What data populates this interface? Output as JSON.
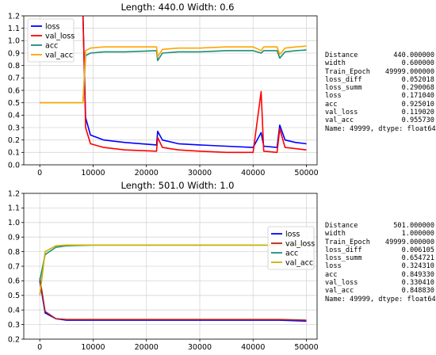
{
  "panels": [
    {
      "title": "Length: 440.0   Width: 0.6",
      "legend_position": "upper-left",
      "stats": [
        {
          "key": "Distance",
          "value": "440.000000"
        },
        {
          "key": "width",
          "value": "0.600000"
        },
        {
          "key": "Train_Epoch",
          "value": "49999.000000"
        },
        {
          "key": "loss_diff",
          "value": "0.052018"
        },
        {
          "key": "loss_summ",
          "value": "0.290068"
        },
        {
          "key": "loss",
          "value": "0.171040"
        },
        {
          "key": "acc",
          "value": "0.925010"
        },
        {
          "key": "val_loss",
          "value": "0.119020"
        },
        {
          "key": "val_acc",
          "value": "0.955730"
        }
      ],
      "stats_footer": "Name: 49999, dtype: float64"
    },
    {
      "title": "Length: 501.0   Width: 1.0",
      "legend_position": "center-right",
      "stats": [
        {
          "key": "Distance",
          "value": "501.000000"
        },
        {
          "key": "width",
          "value": "1.000000"
        },
        {
          "key": "Train_Epoch",
          "value": "49999.000000"
        },
        {
          "key": "loss_diff",
          "value": "0.006105"
        },
        {
          "key": "loss_summ",
          "value": "0.654721"
        },
        {
          "key": "loss",
          "value": "0.324310"
        },
        {
          "key": "acc",
          "value": "0.849330"
        },
        {
          "key": "val_loss",
          "value": "0.330410"
        },
        {
          "key": "val_acc",
          "value": "0.848830"
        }
      ],
      "stats_footer": "Name: 49999, dtype: float64"
    }
  ],
  "chart_data": [
    {
      "type": "line",
      "title": "Length: 440.0   Width: 0.6",
      "xlim": [
        -3000,
        52000
      ],
      "ylim": [
        0.0,
        1.2
      ],
      "xticks": [
        0,
        10000,
        20000,
        30000,
        40000,
        50000
      ],
      "yticks": [
        0.0,
        0.1,
        0.2,
        0.3,
        0.4,
        0.5,
        0.6,
        0.7,
        0.8,
        0.9,
        1.0,
        1.1,
        1.2
      ],
      "grid": true,
      "legend": "upper-left",
      "series": [
        {
          "name": "loss",
          "color": "#0000ff",
          "x": [
            0,
            7900,
            8100,
            8600,
            9500,
            12000,
            16000,
            21900,
            22100,
            23000,
            26000,
            30000,
            35000,
            40000,
            41500,
            42000,
            44500,
            45000,
            46000,
            48000,
            50000
          ],
          "y": [
            null,
            null,
            1.2,
            0.38,
            0.24,
            0.2,
            0.18,
            0.16,
            0.27,
            0.2,
            0.17,
            0.16,
            0.15,
            0.14,
            0.26,
            0.15,
            0.14,
            0.32,
            0.2,
            0.18,
            0.17
          ]
        },
        {
          "name": "val_loss",
          "color": "#ff0000",
          "x": [
            0,
            7900,
            8100,
            8600,
            9500,
            12000,
            16000,
            21900,
            22100,
            23000,
            26000,
            30000,
            35000,
            40000,
            41500,
            42000,
            44500,
            45000,
            46000,
            48000,
            50000
          ],
          "y": [
            null,
            null,
            1.2,
            0.3,
            0.17,
            0.14,
            0.12,
            0.11,
            0.22,
            0.14,
            0.12,
            0.11,
            0.1,
            0.1,
            0.59,
            0.11,
            0.1,
            0.29,
            0.14,
            0.13,
            0.12
          ]
        },
        {
          "name": "acc",
          "color": "#1a8f7a",
          "x": [
            0,
            7900,
            8100,
            8600,
            9500,
            12000,
            16000,
            21900,
            22100,
            23000,
            26000,
            30000,
            35000,
            40000,
            41500,
            42000,
            44500,
            45000,
            46000,
            48000,
            50000
          ],
          "y": [
            0.5,
            0.5,
            0.5,
            0.88,
            0.9,
            0.91,
            0.91,
            0.92,
            0.84,
            0.9,
            0.91,
            0.91,
            0.92,
            0.92,
            0.9,
            0.92,
            0.92,
            0.86,
            0.91,
            0.92,
            0.925
          ]
        },
        {
          "name": "val_acc",
          "color": "#ffa500",
          "x": [
            0,
            7900,
            8100,
            8600,
            9500,
            12000,
            16000,
            21900,
            22100,
            23000,
            26000,
            30000,
            35000,
            40000,
            41500,
            42000,
            44500,
            45000,
            46000,
            48000,
            50000
          ],
          "y": [
            0.5,
            0.5,
            0.5,
            0.92,
            0.94,
            0.95,
            0.95,
            0.95,
            0.87,
            0.93,
            0.94,
            0.94,
            0.95,
            0.95,
            0.92,
            0.95,
            0.95,
            0.89,
            0.94,
            0.95,
            0.956
          ]
        }
      ]
    },
    {
      "type": "line",
      "title": "Length: 501.0   Width: 1.0",
      "xlim": [
        -3000,
        52000
      ],
      "ylim": [
        0.2,
        1.2
      ],
      "xticks": [
        0,
        10000,
        20000,
        30000,
        40000,
        50000
      ],
      "yticks": [
        0.2,
        0.3,
        0.4,
        0.5,
        0.6,
        0.7,
        0.8,
        0.9,
        1.0,
        1.1,
        1.2
      ],
      "grid": true,
      "legend": "center-right",
      "series": [
        {
          "name": "loss",
          "color": "#0000ff",
          "x": [
            0,
            1000,
            3000,
            5000,
            10000,
            15000,
            20000,
            25000,
            30000,
            35000,
            40000,
            45000,
            50000
          ],
          "y": [
            0.6,
            0.38,
            0.34,
            0.33,
            0.33,
            0.33,
            0.33,
            0.33,
            0.33,
            0.33,
            0.33,
            0.33,
            0.324
          ]
        },
        {
          "name": "val_loss",
          "color": "#b22222",
          "x": [
            0,
            1000,
            3000,
            5000,
            10000,
            15000,
            20000,
            25000,
            30000,
            35000,
            40000,
            45000,
            50000
          ],
          "y": [
            0.62,
            0.39,
            0.34,
            0.335,
            0.335,
            0.335,
            0.335,
            0.335,
            0.335,
            0.335,
            0.335,
            0.335,
            0.33
          ]
        },
        {
          "name": "acc",
          "color": "#1a8f7a",
          "x": [
            0,
            1000,
            3000,
            5000,
            10000,
            15000,
            20000,
            25000,
            30000,
            35000,
            40000,
            45000,
            50000
          ],
          "y": [
            0.6,
            0.78,
            0.83,
            0.84,
            0.845,
            0.845,
            0.845,
            0.845,
            0.845,
            0.845,
            0.845,
            0.845,
            0.849
          ]
        },
        {
          "name": "val_acc",
          "color": "#ccb000",
          "x": [
            0,
            1000,
            3000,
            5000,
            10000,
            15000,
            20000,
            25000,
            30000,
            35000,
            40000,
            45000,
            50000
          ],
          "y": [
            0.5,
            0.8,
            0.84,
            0.845,
            0.845,
            0.845,
            0.845,
            0.845,
            0.845,
            0.845,
            0.845,
            0.845,
            0.849
          ]
        }
      ]
    }
  ]
}
